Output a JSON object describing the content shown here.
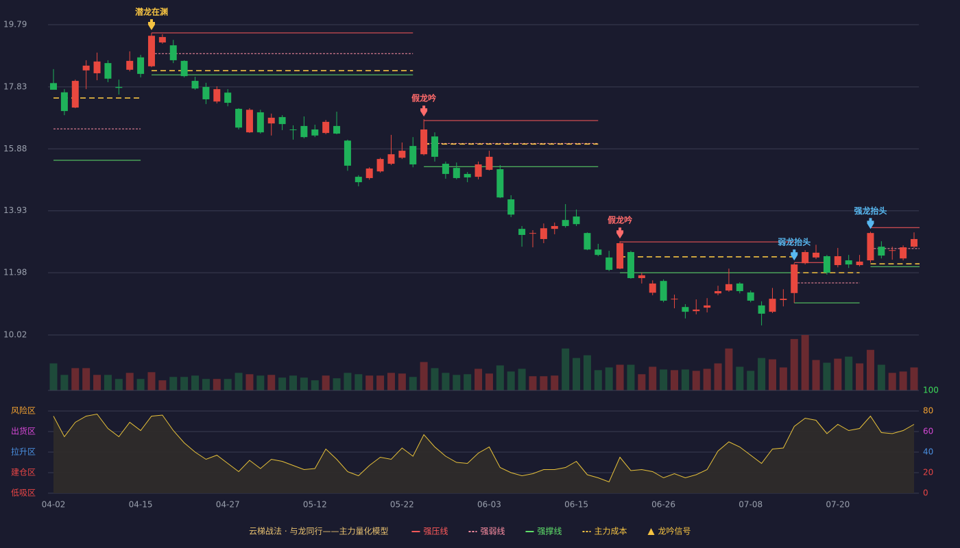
{
  "chart_data": {
    "type": "candlestick",
    "categories": [
      "04-02",
      null,
      null,
      null,
      null,
      null,
      null,
      null,
      "04-15",
      null,
      null,
      null,
      null,
      null,
      null,
      null,
      "04-27",
      null,
      null,
      null,
      null,
      null,
      null,
      null,
      "05-12",
      null,
      null,
      null,
      null,
      null,
      null,
      null,
      "05-22",
      null,
      null,
      null,
      null,
      null,
      null,
      null,
      "06-03",
      null,
      null,
      null,
      null,
      null,
      null,
      null,
      "06-15",
      null,
      null,
      null,
      null,
      null,
      null,
      null,
      "06-26",
      null,
      null,
      null,
      null,
      null,
      null,
      null,
      "07-08",
      null,
      null,
      null,
      null,
      null,
      null,
      null,
      "07-20",
      null,
      null,
      null,
      null,
      null,
      null,
      null
    ],
    "ohlc": [
      [
        17.95,
        18.39,
        17.74,
        17.74
      ],
      [
        17.66,
        17.76,
        16.94,
        17.07
      ],
      [
        17.18,
        18.06,
        17.16,
        18.02
      ],
      [
        18.35,
        18.67,
        17.76,
        18.5
      ],
      [
        18.26,
        18.91,
        18.04,
        18.63
      ],
      [
        18.58,
        18.67,
        17.98,
        18.09
      ],
      [
        17.83,
        18.06,
        17.59,
        17.8
      ],
      [
        18.37,
        18.95,
        18.32,
        18.65
      ],
      [
        18.76,
        18.84,
        18.13,
        18.24
      ],
      [
        18.48,
        19.53,
        18.45,
        19.44
      ],
      [
        19.23,
        19.49,
        19.19,
        19.4
      ],
      [
        19.14,
        19.31,
        18.58,
        18.67
      ],
      [
        18.65,
        18.67,
        18.13,
        18.17
      ],
      [
        18.02,
        18.15,
        17.74,
        17.78
      ],
      [
        17.83,
        17.96,
        17.29,
        17.44
      ],
      [
        17.37,
        17.85,
        17.31,
        17.76
      ],
      [
        17.65,
        17.76,
        17.22,
        17.33
      ],
      [
        17.14,
        17.16,
        16.49,
        16.55
      ],
      [
        16.4,
        17.16,
        16.38,
        17.11
      ],
      [
        17.03,
        17.11,
        16.36,
        16.4
      ],
      [
        16.68,
        16.99,
        16.3,
        16.86
      ],
      [
        16.88,
        16.94,
        16.47,
        16.66
      ],
      [
        16.49,
        16.62,
        16.17,
        16.47
      ],
      [
        16.6,
        16.9,
        16.21,
        16.25
      ],
      [
        16.49,
        16.64,
        16.25,
        16.3
      ],
      [
        16.38,
        16.79,
        16.34,
        16.73
      ],
      [
        16.6,
        17.05,
        16.34,
        16.36
      ],
      [
        16.14,
        16.17,
        15.19,
        15.35
      ],
      [
        15.0,
        15.05,
        14.7,
        14.83
      ],
      [
        14.96,
        15.3,
        14.91,
        15.26
      ],
      [
        15.17,
        15.6,
        15.13,
        15.56
      ],
      [
        15.41,
        16.32,
        15.37,
        15.71
      ],
      [
        15.6,
        16.08,
        15.56,
        15.82
      ],
      [
        15.97,
        16.25,
        15.3,
        15.39
      ],
      [
        15.71,
        16.81,
        15.67,
        16.49
      ],
      [
        16.27,
        16.4,
        15.48,
        15.63
      ],
      [
        15.41,
        15.48,
        14.94,
        15.09
      ],
      [
        15.28,
        15.45,
        14.92,
        14.96
      ],
      [
        15.09,
        15.15,
        14.83,
        14.98
      ],
      [
        15.0,
        15.48,
        14.92,
        15.39
      ],
      [
        15.22,
        15.82,
        15.2,
        15.63
      ],
      [
        15.24,
        15.37,
        14.33,
        14.35
      ],
      [
        14.29,
        14.42,
        13.73,
        13.81
      ],
      [
        13.36,
        13.45,
        12.8,
        13.17
      ],
      [
        13.21,
        13.32,
        12.78,
        13.23
      ],
      [
        13.04,
        13.53,
        12.91,
        13.38
      ],
      [
        13.36,
        13.56,
        13.19,
        13.45
      ],
      [
        13.64,
        14.14,
        13.4,
        13.45
      ],
      [
        13.75,
        13.97,
        13.45,
        13.51
      ],
      [
        13.23,
        13.25,
        12.69,
        12.71
      ],
      [
        12.71,
        12.89,
        12.5,
        12.54
      ],
      [
        12.46,
        12.67,
        12.03,
        12.07
      ],
      [
        12.11,
        12.97,
        12.09,
        12.91
      ],
      [
        12.63,
        12.67,
        11.79,
        11.81
      ],
      [
        11.81,
        11.98,
        11.64,
        11.9
      ],
      [
        11.35,
        11.74,
        11.27,
        11.64
      ],
      [
        11.72,
        11.77,
        11.05,
        11.1
      ],
      [
        11.14,
        11.29,
        10.86,
        11.16
      ],
      [
        10.9,
        10.99,
        10.54,
        10.75
      ],
      [
        10.77,
        11.14,
        10.67,
        10.82
      ],
      [
        10.88,
        11.18,
        10.73,
        10.95
      ],
      [
        11.33,
        11.57,
        11.27,
        11.4
      ],
      [
        11.42,
        12.11,
        11.38,
        11.62
      ],
      [
        11.64,
        11.68,
        11.33,
        11.4
      ],
      [
        11.36,
        11.42,
        11.05,
        11.1
      ],
      [
        10.95,
        11.08,
        10.32,
        10.69
      ],
      [
        10.75,
        11.5,
        10.71,
        11.16
      ],
      [
        11.12,
        11.46,
        10.92,
        11.16
      ],
      [
        11.34,
        12.28,
        11.03,
        12.24
      ],
      [
        12.28,
        12.69,
        12.24,
        12.63
      ],
      [
        12.46,
        12.86,
        12.41,
        12.61
      ],
      [
        12.5,
        12.54,
        11.92,
        11.98
      ],
      [
        12.22,
        12.76,
        12.15,
        12.5
      ],
      [
        12.37,
        12.54,
        12.13,
        12.24
      ],
      [
        12.22,
        12.54,
        12.18,
        12.33
      ],
      [
        12.37,
        13.27,
        12.3,
        13.23
      ],
      [
        12.8,
        12.97,
        12.43,
        12.52
      ],
      [
        12.67,
        12.8,
        12.39,
        12.69
      ],
      [
        12.43,
        12.84,
        12.37,
        12.78
      ],
      [
        12.8,
        13.25,
        12.76,
        13.04
      ]
    ],
    "up_color": "#e8483f",
    "down_color": "#1fb25a",
    "ylim": [
      10.02,
      19.79
    ],
    "yticks": [
      10.02,
      11.98,
      13.93,
      15.88,
      17.83,
      19.79
    ],
    "grid": true,
    "volume": [
      40,
      23,
      33,
      33,
      23,
      23,
      17,
      26,
      17,
      27,
      15,
      20,
      20,
      22,
      17,
      17,
      17,
      26,
      24,
      22,
      23,
      19,
      22,
      19,
      15,
      22,
      18,
      26,
      24,
      22,
      22,
      26,
      25,
      20,
      42,
      33,
      26,
      23,
      24,
      32,
      25,
      37,
      28,
      32,
      21,
      21,
      22,
      62,
      48,
      52,
      30,
      34,
      38,
      38,
      24,
      35,
      31,
      30,
      31,
      29,
      32,
      40,
      62,
      35,
      29,
      48,
      46,
      34,
      76,
      82,
      45,
      41,
      47,
      50,
      40,
      60,
      38,
      26,
      28,
      34
    ],
    "volume_up_color": "#6a2a30",
    "volume_down_color": "#1e4a3a",
    "oscillator": [
      75,
      55,
      69,
      75,
      77,
      63,
      55,
      69,
      61,
      75,
      76,
      61,
      49,
      40,
      33,
      37,
      29,
      21,
      32,
      24,
      33,
      31,
      27,
      23,
      24,
      43,
      33,
      21,
      17,
      27,
      35,
      33,
      44,
      36,
      57,
      45,
      36,
      30,
      29,
      39,
      45,
      25,
      20,
      17,
      19,
      23,
      23,
      25,
      31,
      18,
      15,
      11,
      35,
      22,
      23,
      21,
      15,
      19,
      15,
      18,
      23,
      41,
      50,
      45,
      37,
      29,
      43,
      44,
      65,
      73,
      71,
      58,
      67,
      61,
      63,
      75,
      59,
      58,
      61,
      67
    ],
    "oscillator_color": "#e8c23a",
    "osc_ylim": [
      0,
      100
    ],
    "osc_yticks": [
      0,
      20,
      40,
      60,
      80,
      100
    ],
    "osc_tick_colors": [
      "#e84545",
      "#e84545",
      "#4a8fe0",
      "#d548d5",
      "#f0a030",
      "#3ddc5a"
    ],
    "zones": [
      {
        "value": 80,
        "label": "风险区",
        "color": "#f0a030"
      },
      {
        "value": 60,
        "label": "出货区",
        "color": "#d548d5"
      },
      {
        "value": 40,
        "label": "拉升区",
        "color": "#4a8fe0"
      },
      {
        "value": 20,
        "label": "建仓区",
        "color": "#e84545"
      },
      {
        "value": 0,
        "label": "低吸区",
        "color": "#e84545"
      }
    ],
    "levels": [
      {
        "name": "强压线",
        "color": "#ff5a5a",
        "style": "solid",
        "segments": [
          {
            "from": 9,
            "to": 33,
            "value": 19.53
          },
          {
            "from": 34,
            "to": 50,
            "value": 16.77
          },
          {
            "from": 52,
            "to": 68,
            "value": 12.95
          },
          {
            "from": 68,
            "to": 71,
            "value": 12.3
          },
          {
            "from": 75,
            "to": 79,
            "value": 13.4
          }
        ]
      },
      {
        "name": "强弱线",
        "color": "#ff8fa3",
        "style": "dotted",
        "segments": [
          {
            "from": 0,
            "to": 8,
            "value": 16.51
          },
          {
            "from": 9,
            "to": 33,
            "value": 18.88
          },
          {
            "from": 34,
            "to": 50,
            "value": 16.05
          },
          {
            "from": 68,
            "to": 74,
            "value": 11.66
          },
          {
            "from": 75,
            "to": 79,
            "value": 12.74
          }
        ]
      },
      {
        "name": "强撑线",
        "color": "#5fe06a",
        "style": "solid",
        "segments": [
          {
            "from": 0,
            "to": 8,
            "value": 15.52
          },
          {
            "from": 9,
            "to": 33,
            "value": 18.21
          },
          {
            "from": 34,
            "to": 50,
            "value": 15.32
          },
          {
            "from": 52,
            "to": 68,
            "value": 11.98
          },
          {
            "from": 68,
            "to": 74,
            "value": 11.03
          },
          {
            "from": 75,
            "to": 79,
            "value": 12.17
          }
        ]
      },
      {
        "name": "主力成本",
        "color": "#f5c342",
        "style": "dashed",
        "segments": [
          {
            "from": 0,
            "to": 8,
            "value": 17.48
          },
          {
            "from": 9,
            "to": 33,
            "value": 18.34
          },
          {
            "from": 34,
            "to": 50,
            "value": 16.03
          },
          {
            "from": 52,
            "to": 68,
            "value": 12.48
          },
          {
            "from": 68,
            "to": 74,
            "value": 11.98
          },
          {
            "from": 75,
            "to": 79,
            "value": 12.26
          }
        ]
      }
    ],
    "signals": [
      {
        "index": 9,
        "label": "潜龙在渊",
        "color": "#f5c342"
      },
      {
        "index": 34,
        "label": "假龙吟",
        "color": "#ff6b6b"
      },
      {
        "index": 52,
        "label": "假龙吟",
        "color": "#ff6b6b"
      },
      {
        "index": 68,
        "label": "弱龙抬头",
        "color": "#58b8f0"
      },
      {
        "index": 75,
        "label": "强龙抬头",
        "color": "#58b8f0"
      }
    ],
    "legend_title": "云梯战法 · 与龙同行——主力量化模型",
    "signal_legend": "龙吟信号",
    "signal_legend_color": "#f5c342"
  }
}
